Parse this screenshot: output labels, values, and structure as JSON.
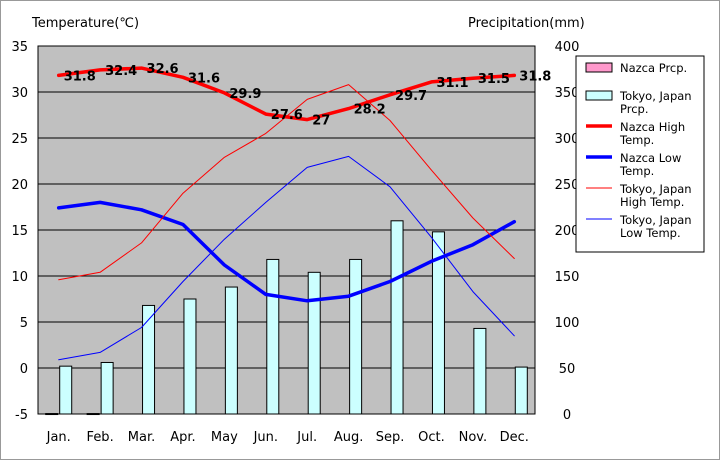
{
  "chart_data": {
    "type": "bar",
    "left_axis_title": "Temperature(℃)",
    "right_axis_title": "Precipitation(mm)",
    "categories": [
      "Jan.",
      "Feb.",
      "Mar.",
      "Apr.",
      "May",
      "Jun.",
      "Jul.",
      "Aug.",
      "Sep.",
      "Oct.",
      "Nov.",
      "Dec."
    ],
    "y_left": {
      "min": -5,
      "max": 35,
      "ticks": [
        "-5",
        "0",
        "5",
        "10",
        "15",
        "20",
        "25",
        "30",
        "35"
      ]
    },
    "y_right": {
      "min": 0,
      "max": 400,
      "ticks": [
        "0",
        "50",
        "100",
        "150",
        "200",
        "250",
        "300",
        "350",
        "400"
      ]
    },
    "grid": true,
    "legend_position": "right",
    "bar_series": [
      {
        "name": "Nazca Prcp.",
        "values": [
          0.5,
          0.5,
          0,
          0,
          0,
          0,
          0,
          0,
          0,
          0,
          0,
          0
        ],
        "color": "#ff99cc"
      },
      {
        "name": "Tokyo, Japan Prcp.",
        "values": [
          52,
          56,
          118,
          125,
          138,
          168,
          154,
          168,
          210,
          198,
          93,
          51
        ],
        "color": "#ccffff"
      }
    ],
    "line_series": [
      {
        "name": "Nazca High Temp.",
        "values": [
          31.8,
          32.4,
          32.6,
          31.6,
          29.9,
          27.6,
          27,
          28.2,
          29.7,
          31.1,
          31.5,
          31.8
        ],
        "color": "#ff0000",
        "width": 3.5,
        "labels": true
      },
      {
        "name": "Nazca Low Temp.",
        "values": [
          17.4,
          18,
          17.2,
          15.6,
          11.2,
          8,
          7.3,
          7.8,
          9.4,
          11.6,
          13.4,
          15.9
        ],
        "color": "#0000ff",
        "width": 3.5,
        "labels": false
      },
      {
        "name": "Tokyo, Japan High Temp.",
        "values": [
          9.6,
          10.4,
          13.6,
          19,
          22.9,
          25.5,
          29.2,
          30.8,
          26.9,
          21.5,
          16.3,
          11.9
        ],
        "color": "#ff0000",
        "width": 1,
        "labels": false
      },
      {
        "name": "Tokyo, Japan Low Temp.",
        "values": [
          0.9,
          1.7,
          4.4,
          9.4,
          14,
          18,
          21.8,
          23,
          19.7,
          14.2,
          8.3,
          3.5
        ],
        "color": "#0000ff",
        "width": 1,
        "labels": false
      }
    ],
    "legend": [
      {
        "line1": "Nazca Prcp.",
        "line2": "",
        "kind": "box",
        "color": "#ff99cc"
      },
      {
        "line1": "Tokyo, Japan",
        "line2": "Prcp.",
        "kind": "box",
        "color": "#ccffff"
      },
      {
        "line1": "Nazca High",
        "line2": "Temp.",
        "kind": "line",
        "color": "#ff0000",
        "width": 3.5
      },
      {
        "line1": "Nazca Low",
        "line2": "Temp.",
        "kind": "line",
        "color": "#0000ff",
        "width": 3.5
      },
      {
        "line1": "Tokyo, Japan",
        "line2": "High Temp.",
        "kind": "line",
        "color": "#ff0000",
        "width": 1
      },
      {
        "line1": "Tokyo, Japan",
        "line2": "Low Temp.",
        "kind": "line",
        "color": "#0000ff",
        "width": 1
      }
    ]
  }
}
